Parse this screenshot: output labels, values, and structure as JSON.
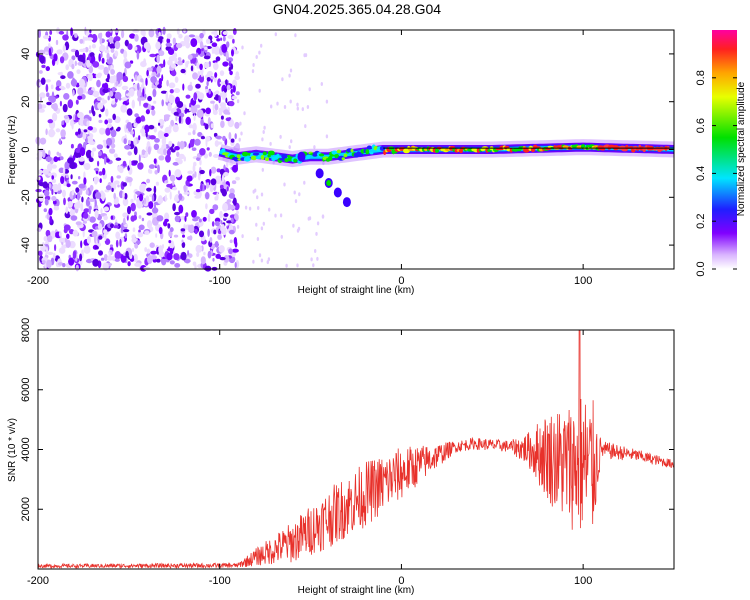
{
  "title": "GN04.2025.365.04.28.G04",
  "chart_data": [
    {
      "type": "heatmap",
      "name": "spectrogram",
      "xlabel": "Height of straight line (km)",
      "ylabel": "Frequency (Hz)",
      "xlim": [
        -200,
        150
      ],
      "ylim": [
        -50,
        50
      ],
      "xticks": [
        -200,
        -100,
        0,
        100
      ],
      "yticks": [
        -40,
        -20,
        0,
        20,
        40
      ],
      "noise_region_x": [
        -200,
        -90
      ],
      "carrier_track": [
        {
          "x": -100,
          "y": -1
        },
        {
          "x": -90,
          "y": -3
        },
        {
          "x": -80,
          "y": -2
        },
        {
          "x": -70,
          "y": -3
        },
        {
          "x": -60,
          "y": -4
        },
        {
          "x": -50,
          "y": -3
        },
        {
          "x": -40,
          "y": -3
        },
        {
          "x": -30,
          "y": -2
        },
        {
          "x": -20,
          "y": -1
        },
        {
          "x": -10,
          "y": 0
        },
        {
          "x": 0,
          "y": 0
        },
        {
          "x": 50,
          "y": 0
        },
        {
          "x": 100,
          "y": 1
        },
        {
          "x": 150,
          "y": 0
        }
      ],
      "branch_track": [
        {
          "x": -55,
          "y": -3
        },
        {
          "x": -45,
          "y": -10
        },
        {
          "x": -40,
          "y": -14
        },
        {
          "x": -35,
          "y": -18
        },
        {
          "x": -30,
          "y": -22
        }
      ],
      "colorbar": {
        "label": "Normalized spectral amplitude",
        "range": [
          0,
          1
        ],
        "ticks": [
          0.0,
          0.2,
          0.4,
          0.6,
          0.8
        ],
        "tick_labels": [
          "0.0",
          "0.2",
          "0.4",
          "0.6",
          "0.8"
        ]
      }
    },
    {
      "type": "line",
      "name": "snr",
      "xlabel": "Height of straight line (km)",
      "ylabel": "SNR (10 * v/v)",
      "xlim": [
        -200,
        150
      ],
      "ylim": [
        0,
        8000
      ],
      "xticks": [
        -200,
        -100,
        0,
        100
      ],
      "yticks": [
        2000,
        4000,
        6000,
        8000
      ],
      "color": "#e8312b",
      "envelope": {
        "x": [
          -200,
          -90,
          -80,
          -60,
          -40,
          -20,
          0,
          20,
          30,
          40,
          60,
          70,
          80,
          90,
          100,
          105,
          110,
          130,
          150
        ],
        "mean": [
          100,
          120,
          400,
          900,
          1700,
          2500,
          3200,
          3800,
          4100,
          4200,
          4100,
          4000,
          3800,
          3500,
          3500,
          3300,
          4000,
          3800,
          3500
        ],
        "spread": [
          60,
          80,
          300,
          700,
          1000,
          1100,
          900,
          400,
          200,
          200,
          200,
          600,
          1500,
          2000,
          2500,
          2500,
          300,
          200,
          150
        ]
      },
      "peak": {
        "x": 98,
        "y": 8000
      }
    }
  ]
}
